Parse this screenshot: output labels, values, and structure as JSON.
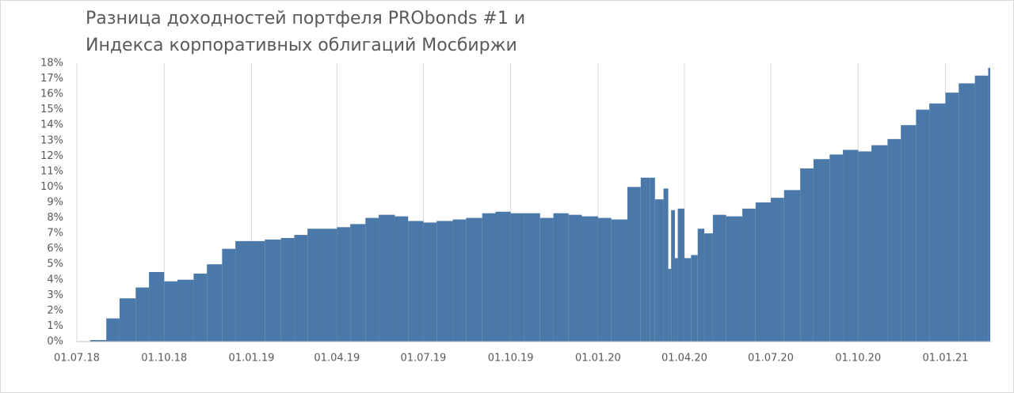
{
  "chart_data": {
    "type": "bar",
    "title": [
      "Разница доходностей портфеля PRObonds #1 и",
      "Индекса корпоративных облигаций Мосбиржи"
    ],
    "x": [
      "15.07.18",
      "01.08.18",
      "15.08.18",
      "01.09.18",
      "15.09.18",
      "01.10.18",
      "15.10.18",
      "01.11.18",
      "15.11.18",
      "01.12.18",
      "15.12.18",
      "01.01.19",
      "15.01.19",
      "01.02.19",
      "15.02.19",
      "01.03.19",
      "15.03.19",
      "01.04.19",
      "15.04.19",
      "01.05.19",
      "15.05.19",
      "01.06.19",
      "15.06.19",
      "01.07.19",
      "15.07.19",
      "01.08.19",
      "15.08.19",
      "01.09.19",
      "15.09.19",
      "01.10.19",
      "15.10.19",
      "01.11.19",
      "15.11.19",
      "01.12.19",
      "15.12.19",
      "01.01.20",
      "15.01.20",
      "01.02.20",
      "15.02.20",
      "25.02.20",
      "01.03.20",
      "10.03.20",
      "15.03.20",
      "18.03.20",
      "22.03.20",
      "25.03.20",
      "01.04.20",
      "08.04.20",
      "15.04.20",
      "22.04.20",
      "01.05.20",
      "15.05.20",
      "01.06.20",
      "15.06.20",
      "01.07.20",
      "15.07.20",
      "01.08.20",
      "15.08.20",
      "01.09.20",
      "15.09.20",
      "01.10.20",
      "15.10.20",
      "01.11.20",
      "15.11.20",
      "01.12.20",
      "15.12.20",
      "01.01.21",
      "15.01.21",
      "01.02.21",
      "15.02.21"
    ],
    "values": [
      0.1,
      1.5,
      2.8,
      3.5,
      4.5,
      3.9,
      4.0,
      4.4,
      5.0,
      6.0,
      6.5,
      6.5,
      6.6,
      6.7,
      6.9,
      7.3,
      7.3,
      7.4,
      7.6,
      8.0,
      8.2,
      8.1,
      7.8,
      7.7,
      7.8,
      7.9,
      8.0,
      8.3,
      8.4,
      8.3,
      8.3,
      8.0,
      8.3,
      8.2,
      8.1,
      8.0,
      7.9,
      10.0,
      10.6,
      10.6,
      9.2,
      9.9,
      4.7,
      8.5,
      5.4,
      8.6,
      5.4,
      5.6,
      7.3,
      7.0,
      8.2,
      8.1,
      8.6,
      9.0,
      9.3,
      9.8,
      11.2,
      11.8,
      12.1,
      12.4,
      12.3,
      12.7,
      13.1,
      14.0,
      15.0,
      15.4,
      16.1,
      16.7,
      17.2,
      17.7
    ],
    "color": "#4a78a8",
    "xlim": [
      "01.07.18",
      "18.02.21"
    ],
    "xticks": [
      "01.07.18",
      "01.10.18",
      "01.01.19",
      "01.04.19",
      "01.07.19",
      "01.10.19",
      "01.01.20",
      "01.04.20",
      "01.07.20",
      "01.10.20",
      "01.01.21"
    ],
    "ylim": [
      0,
      18
    ],
    "yticks": [
      {
        "value": 0,
        "label": "0%"
      },
      {
        "value": 1,
        "label": "1%"
      },
      {
        "value": 2,
        "label": "2%"
      },
      {
        "value": 3,
        "label": "3%"
      },
      {
        "value": 4,
        "label": "4%"
      },
      {
        "value": 5,
        "label": "5%"
      },
      {
        "value": 6,
        "label": "6%"
      },
      {
        "value": 7,
        "label": "7%"
      },
      {
        "value": 8,
        "label": "8%"
      },
      {
        "value": 9,
        "label": "9%"
      },
      {
        "value": 10,
        "label": "10%"
      },
      {
        "value": 11,
        "label": "11%"
      },
      {
        "value": 12,
        "label": "12%"
      },
      {
        "value": 13,
        "label": "13%"
      },
      {
        "value": 14,
        "label": "14%"
      },
      {
        "value": 15,
        "label": "15%"
      },
      {
        "value": 16,
        "label": "16%"
      },
      {
        "value": 17,
        "label": "17%"
      },
      {
        "value": 18,
        "label": "18%"
      }
    ],
    "grid": "x"
  }
}
